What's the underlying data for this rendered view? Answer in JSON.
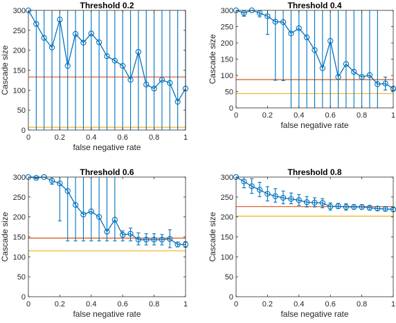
{
  "figure": {
    "colors": {
      "series": "#0072BD",
      "ref1": "#D95319",
      "ref2": "#EDB120",
      "axis": "#262626"
    }
  },
  "chart_data": [
    {
      "type": "line",
      "title": "Threshold 0.2",
      "xlabel": "false negative rate",
      "ylabel": "Cascade size",
      "xlim": [
        0,
        1
      ],
      "ylim": [
        0,
        300
      ],
      "xticks": [
        0,
        0.2,
        0.4,
        0.6,
        0.8,
        1
      ],
      "yticks": [
        0,
        50,
        100,
        150,
        200,
        250,
        300
      ],
      "grid": false,
      "series": [
        {
          "x": [
            0,
            0.05,
            0.1,
            0.15,
            0.2,
            0.25,
            0.3,
            0.35,
            0.4,
            0.45,
            0.5,
            0.55,
            0.6,
            0.65,
            0.7,
            0.75,
            0.8,
            0.85,
            0.9,
            0.95,
            1
          ],
          "y": [
            300,
            266,
            231,
            207,
            277,
            161,
            241,
            219,
            242,
            220,
            185,
            174,
            161,
            126,
            196,
            114,
            104,
            126,
            118,
            71,
            104
          ],
          "lower": [
            300,
            0,
            0,
            0,
            0,
            0,
            0,
            0,
            0,
            0,
            0,
            0,
            0,
            0,
            0,
            0,
            0,
            0,
            0,
            0,
            0
          ],
          "upper": [
            300,
            300,
            300,
            300,
            300,
            300,
            300,
            300,
            300,
            300,
            300,
            300,
            300,
            300,
            300,
            300,
            300,
            300,
            300,
            300,
            300
          ]
        }
      ],
      "reference_lines": [
        133,
        7
      ]
    },
    {
      "type": "line",
      "title": "Threshold 0.4",
      "xlabel": "false negative rate",
      "ylabel": "Cascade size",
      "xlim": [
        0,
        1
      ],
      "ylim": [
        0,
        300
      ],
      "xticks": [
        0,
        0.2,
        0.4,
        0.6,
        0.8,
        1
      ],
      "yticks": [
        0,
        50,
        100,
        150,
        200,
        250,
        300
      ],
      "grid": false,
      "series": [
        {
          "x": [
            0,
            0.05,
            0.1,
            0.15,
            0.2,
            0.25,
            0.3,
            0.35,
            0.4,
            0.45,
            0.5,
            0.55,
            0.6,
            0.65,
            0.7,
            0.75,
            0.8,
            0.85,
            0.9,
            0.95,
            1
          ],
          "y": [
            300,
            292,
            300,
            292,
            282,
            265,
            264,
            229,
            245,
            217,
            178,
            122,
            206,
            95,
            135,
            111,
            95,
            101,
            73,
            75,
            59
          ],
          "lower": [
            300,
            282,
            300,
            280,
            226,
            85,
            84,
            0,
            0,
            0,
            0,
            0,
            0,
            0,
            0,
            0,
            0,
            0,
            0,
            55,
            55
          ],
          "upper": [
            300,
            300,
            300,
            300,
            300,
            300,
            300,
            300,
            300,
            300,
            300,
            300,
            300,
            300,
            300,
            300,
            300,
            300,
            300,
            95,
            65
          ]
        }
      ],
      "reference_lines": [
        87,
        44
      ]
    },
    {
      "type": "line",
      "title": "Threshold 0.6",
      "xlabel": "false negative rate",
      "ylabel": "Cascade size",
      "xlim": [
        0,
        1
      ],
      "ylim": [
        0,
        300
      ],
      "xticks": [
        0,
        0.2,
        0.4,
        0.6,
        0.8,
        1
      ],
      "yticks": [
        0,
        50,
        100,
        150,
        200,
        250,
        300
      ],
      "grid": false,
      "series": [
        {
          "x": [
            0,
            0.05,
            0.1,
            0.15,
            0.2,
            0.25,
            0.3,
            0.35,
            0.4,
            0.45,
            0.5,
            0.55,
            0.6,
            0.65,
            0.7,
            0.75,
            0.8,
            0.85,
            0.9,
            0.95,
            1
          ],
          "y": [
            300,
            298,
            300,
            291,
            284,
            265,
            230,
            206,
            214,
            200,
            163,
            193,
            155,
            158,
            143,
            143,
            143,
            143,
            145,
            131,
            131
          ],
          "lower": [
            300,
            296,
            300,
            282,
            190,
            140,
            140,
            140,
            140,
            140,
            140,
            140,
            140,
            140,
            130,
            130,
            130,
            130,
            123,
            125,
            124
          ],
          "upper": [
            300,
            300,
            300,
            300,
            300,
            300,
            300,
            300,
            300,
            300,
            300,
            300,
            165,
            172,
            160,
            158,
            158,
            156,
            168,
            137,
            138
          ]
        }
      ],
      "reference_lines": [
        147,
        115
      ]
    },
    {
      "type": "line",
      "title": "Threshold 0.8",
      "xlabel": "false negative rate",
      "ylabel": "Cascade size",
      "xlim": [
        0,
        1
      ],
      "ylim": [
        0,
        300
      ],
      "xticks": [
        0,
        0.2,
        0.4,
        0.6,
        0.8,
        1
      ],
      "yticks": [
        0,
        50,
        100,
        150,
        200,
        250,
        300
      ],
      "grid": false,
      "series": [
        {
          "x": [
            0,
            0.05,
            0.1,
            0.15,
            0.2,
            0.25,
            0.3,
            0.35,
            0.4,
            0.45,
            0.5,
            0.55,
            0.6,
            0.65,
            0.7,
            0.75,
            0.8,
            0.85,
            0.9,
            0.95,
            1
          ],
          "y": [
            300,
            289,
            277,
            268,
            258,
            252,
            248,
            245,
            242,
            237,
            236,
            235,
            226,
            227,
            225,
            225,
            225,
            223,
            221,
            220,
            219
          ],
          "lower": [
            300,
            273,
            259,
            251,
            240,
            237,
            233,
            233,
            229,
            225,
            225,
            223,
            217,
            221,
            217,
            219,
            219,
            217,
            216,
            215,
            214
          ],
          "upper": [
            300,
            300,
            296,
            287,
            276,
            271,
            265,
            260,
            256,
            251,
            248,
            246,
            235,
            234,
            233,
            231,
            231,
            229,
            226,
            225,
            223
          ]
        }
      ],
      "reference_lines": [
        226,
        202
      ]
    }
  ]
}
